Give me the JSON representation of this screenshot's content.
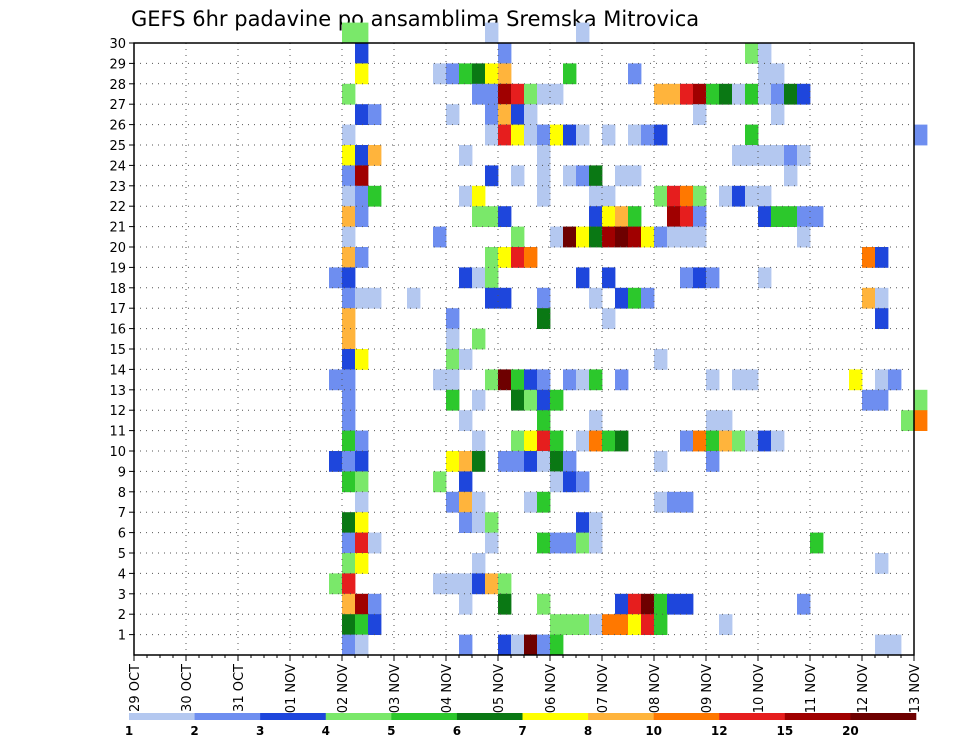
{
  "chart_data": {
    "type": "heatmap",
    "title": "GEFS 6hr padavine po ansamblima Sremska Mitrovica",
    "xlabel": "",
    "ylabel": "",
    "x_ticks": [
      "29 OCT",
      "30 OCT",
      "31 OCT",
      "01 NOV",
      "02 NOV",
      "03 NOV",
      "04 NOV",
      "05 NOV",
      "06 NOV",
      "07 NOV",
      "08 NOV",
      "09 NOV",
      "10 NOV",
      "11 NOV",
      "12 NOV",
      "13 NOV"
    ],
    "y_ticks": [
      1,
      2,
      3,
      4,
      5,
      6,
      7,
      8,
      9,
      10,
      11,
      12,
      13,
      14,
      15,
      16,
      17,
      18,
      19,
      20,
      21,
      22,
      23,
      24,
      25,
      26,
      27,
      28,
      29,
      30
    ],
    "x_unit": "6-hour step from 29 OCT 00Z",
    "x_range": [
      0,
      60
    ],
    "y_range": [
      0,
      30
    ],
    "grid": true,
    "levels": [
      "1",
      "2",
      "3",
      "4",
      "5",
      "6",
      "7",
      "8",
      "10",
      "12",
      "15",
      "20"
    ],
    "colors": [
      "#b4c8f0",
      "#6e8ef0",
      "#1e46dc",
      "#7ae86a",
      "#2cc82c",
      "#0a7814",
      "#ffff00",
      "#ffb43c",
      "#ff7800",
      "#e61e1e",
      "#a00000",
      "#6e0000"
    ],
    "cells": [
      [
        16,
        30,
        3
      ],
      [
        17,
        30,
        3
      ],
      [
        27,
        30,
        0
      ],
      [
        34,
        30,
        0
      ],
      [
        17,
        29,
        2
      ],
      [
        28,
        29,
        1
      ],
      [
        47,
        29,
        3
      ],
      [
        48,
        29,
        0
      ],
      [
        17,
        28,
        6
      ],
      [
        23,
        28,
        0
      ],
      [
        24,
        28,
        1
      ],
      [
        25,
        28,
        4
      ],
      [
        26,
        28,
        5
      ],
      [
        27,
        28,
        6
      ],
      [
        28,
        28,
        7
      ],
      [
        33,
        28,
        4
      ],
      [
        38,
        28,
        1
      ],
      [
        48,
        28,
        0
      ],
      [
        49,
        28,
        0
      ],
      [
        16,
        27,
        3
      ],
      [
        26,
        27,
        1
      ],
      [
        27,
        27,
        1
      ],
      [
        28,
        27,
        10
      ],
      [
        29,
        27,
        9
      ],
      [
        30,
        27,
        3
      ],
      [
        31,
        27,
        0
      ],
      [
        32,
        27,
        0
      ],
      [
        40,
        27,
        7
      ],
      [
        41,
        27,
        7
      ],
      [
        42,
        27,
        9
      ],
      [
        43,
        27,
        10
      ],
      [
        44,
        27,
        4
      ],
      [
        45,
        27,
        5
      ],
      [
        46,
        27,
        0
      ],
      [
        47,
        27,
        4
      ],
      [
        48,
        27,
        0
      ],
      [
        49,
        27,
        1
      ],
      [
        50,
        27,
        5
      ],
      [
        51,
        27,
        2
      ],
      [
        17,
        26,
        2
      ],
      [
        18,
        26,
        1
      ],
      [
        24,
        26,
        0
      ],
      [
        27,
        26,
        1
      ],
      [
        28,
        26,
        7
      ],
      [
        29,
        26,
        2
      ],
      [
        30,
        26,
        0
      ],
      [
        43,
        26,
        0
      ],
      [
        49,
        26,
        0
      ],
      [
        16,
        25,
        0
      ],
      [
        27,
        25,
        0
      ],
      [
        28,
        25,
        9
      ],
      [
        29,
        25,
        6
      ],
      [
        30,
        25,
        0
      ],
      [
        31,
        25,
        1
      ],
      [
        32,
        25,
        6
      ],
      [
        33,
        25,
        2
      ],
      [
        34,
        25,
        0
      ],
      [
        36,
        25,
        0
      ],
      [
        38,
        25,
        0
      ],
      [
        39,
        25,
        1
      ],
      [
        40,
        25,
        2
      ],
      [
        47,
        25,
        4
      ],
      [
        60,
        25,
        1
      ],
      [
        16,
        24,
        6
      ],
      [
        17,
        24,
        2
      ],
      [
        18,
        24,
        7
      ],
      [
        25,
        24,
        0
      ],
      [
        31,
        24,
        0
      ],
      [
        46,
        24,
        0
      ],
      [
        47,
        24,
        0
      ],
      [
        48,
        24,
        0
      ],
      [
        49,
        24,
        0
      ],
      [
        50,
        24,
        1
      ],
      [
        51,
        24,
        0
      ],
      [
        16,
        23,
        1
      ],
      [
        17,
        23,
        10
      ],
      [
        27,
        23,
        2
      ],
      [
        29,
        23,
        0
      ],
      [
        31,
        23,
        0
      ],
      [
        33,
        23,
        0
      ],
      [
        34,
        23,
        1
      ],
      [
        35,
        23,
        5
      ],
      [
        37,
        23,
        0
      ],
      [
        38,
        23,
        0
      ],
      [
        50,
        23,
        0
      ],
      [
        16,
        22,
        0
      ],
      [
        17,
        22,
        1
      ],
      [
        18,
        22,
        4
      ],
      [
        25,
        22,
        0
      ],
      [
        26,
        22,
        6
      ],
      [
        31,
        22,
        0
      ],
      [
        35,
        22,
        0
      ],
      [
        36,
        22,
        0
      ],
      [
        40,
        22,
        3
      ],
      [
        41,
        22,
        9
      ],
      [
        42,
        22,
        8
      ],
      [
        43,
        22,
        3
      ],
      [
        45,
        22,
        0
      ],
      [
        46,
        22,
        2
      ],
      [
        47,
        22,
        0
      ],
      [
        48,
        22,
        0
      ],
      [
        16,
        21,
        7
      ],
      [
        17,
        21,
        1
      ],
      [
        26,
        21,
        3
      ],
      [
        27,
        21,
        3
      ],
      [
        28,
        21,
        2
      ],
      [
        35,
        21,
        2
      ],
      [
        36,
        21,
        6
      ],
      [
        37,
        21,
        7
      ],
      [
        38,
        21,
        4
      ],
      [
        41,
        21,
        10
      ],
      [
        42,
        21,
        9
      ],
      [
        43,
        21,
        1
      ],
      [
        48,
        21,
        2
      ],
      [
        49,
        21,
        4
      ],
      [
        50,
        21,
        4
      ],
      [
        51,
        21,
        1
      ],
      [
        52,
        21,
        1
      ],
      [
        16,
        20,
        0
      ],
      [
        23,
        20,
        1
      ],
      [
        29,
        20,
        3
      ],
      [
        32,
        20,
        0
      ],
      [
        33,
        20,
        11
      ],
      [
        34,
        20,
        6
      ],
      [
        35,
        20,
        5
      ],
      [
        36,
        20,
        10
      ],
      [
        37,
        20,
        11
      ],
      [
        38,
        20,
        10
      ],
      [
        39,
        20,
        6
      ],
      [
        40,
        20,
        1
      ],
      [
        41,
        20,
        0
      ],
      [
        42,
        20,
        0
      ],
      [
        43,
        20,
        0
      ],
      [
        51,
        20,
        0
      ],
      [
        16,
        19,
        7
      ],
      [
        17,
        19,
        1
      ],
      [
        27,
        19,
        3
      ],
      [
        28,
        19,
        6
      ],
      [
        29,
        19,
        9
      ],
      [
        30,
        19,
        8
      ],
      [
        56,
        19,
        8
      ],
      [
        57,
        19,
        2
      ],
      [
        15,
        18,
        1
      ],
      [
        16,
        18,
        2
      ],
      [
        25,
        18,
        2
      ],
      [
        26,
        18,
        0
      ],
      [
        27,
        18,
        3
      ],
      [
        34,
        18,
        2
      ],
      [
        36,
        18,
        2
      ],
      [
        42,
        18,
        1
      ],
      [
        43,
        18,
        2
      ],
      [
        44,
        18,
        1
      ],
      [
        48,
        18,
        0
      ],
      [
        16,
        17,
        1
      ],
      [
        17,
        17,
        0
      ],
      [
        18,
        17,
        0
      ],
      [
        21,
        17,
        0
      ],
      [
        27,
        17,
        2
      ],
      [
        28,
        17,
        2
      ],
      [
        31,
        17,
        1
      ],
      [
        35,
        17,
        0
      ],
      [
        37,
        17,
        2
      ],
      [
        38,
        17,
        4
      ],
      [
        39,
        17,
        1
      ],
      [
        56,
        17,
        7
      ],
      [
        57,
        17,
        0
      ],
      [
        16,
        16,
        7
      ],
      [
        24,
        16,
        1
      ],
      [
        31,
        16,
        5
      ],
      [
        36,
        16,
        0
      ],
      [
        57,
        16,
        2
      ],
      [
        16,
        15,
        7
      ],
      [
        24,
        15,
        0
      ],
      [
        26,
        15,
        3
      ],
      [
        16,
        14,
        2
      ],
      [
        17,
        14,
        6
      ],
      [
        24,
        14,
        3
      ],
      [
        25,
        14,
        0
      ],
      [
        40,
        14,
        0
      ],
      [
        15,
        13,
        1
      ],
      [
        16,
        13,
        1
      ],
      [
        23,
        13,
        0
      ],
      [
        24,
        13,
        0
      ],
      [
        27,
        13,
        3
      ],
      [
        28,
        13,
        11
      ],
      [
        29,
        13,
        4
      ],
      [
        30,
        13,
        2
      ],
      [
        31,
        13,
        1
      ],
      [
        33,
        13,
        1
      ],
      [
        34,
        13,
        0
      ],
      [
        35,
        13,
        4
      ],
      [
        37,
        13,
        1
      ],
      [
        44,
        13,
        0
      ],
      [
        46,
        13,
        0
      ],
      [
        47,
        13,
        0
      ],
      [
        55,
        13,
        6
      ],
      [
        57,
        13,
        0
      ],
      [
        58,
        13,
        1
      ],
      [
        16,
        12,
        1
      ],
      [
        24,
        12,
        4
      ],
      [
        26,
        12,
        0
      ],
      [
        29,
        12,
        5
      ],
      [
        30,
        12,
        3
      ],
      [
        31,
        12,
        2
      ],
      [
        32,
        12,
        4
      ],
      [
        56,
        12,
        1
      ],
      [
        57,
        12,
        1
      ],
      [
        60,
        12,
        3
      ],
      [
        16,
        11,
        1
      ],
      [
        25,
        11,
        0
      ],
      [
        31,
        11,
        4
      ],
      [
        35,
        11,
        0
      ],
      [
        44,
        11,
        0
      ],
      [
        45,
        11,
        0
      ],
      [
        59,
        11,
        3
      ],
      [
        60,
        11,
        8
      ],
      [
        16,
        10,
        4
      ],
      [
        17,
        10,
        1
      ],
      [
        26,
        10,
        0
      ],
      [
        29,
        10,
        3
      ],
      [
        30,
        10,
        6
      ],
      [
        31,
        10,
        9
      ],
      [
        32,
        10,
        4
      ],
      [
        34,
        10,
        0
      ],
      [
        35,
        10,
        8
      ],
      [
        36,
        10,
        4
      ],
      [
        37,
        10,
        5
      ],
      [
        42,
        10,
        1
      ],
      [
        43,
        10,
        8
      ],
      [
        44,
        10,
        4
      ],
      [
        45,
        10,
        7
      ],
      [
        46,
        10,
        3
      ],
      [
        47,
        10,
        0
      ],
      [
        48,
        10,
        2
      ],
      [
        49,
        10,
        0
      ],
      [
        15,
        9,
        2
      ],
      [
        16,
        9,
        1
      ],
      [
        17,
        9,
        2
      ],
      [
        24,
        9,
        6
      ],
      [
        25,
        9,
        7
      ],
      [
        26,
        9,
        5
      ],
      [
        28,
        9,
        1
      ],
      [
        29,
        9,
        1
      ],
      [
        30,
        9,
        2
      ],
      [
        31,
        9,
        0
      ],
      [
        32,
        9,
        5
      ],
      [
        33,
        9,
        1
      ],
      [
        40,
        9,
        0
      ],
      [
        44,
        9,
        1
      ],
      [
        16,
        8,
        4
      ],
      [
        17,
        8,
        3
      ],
      [
        23,
        8,
        3
      ],
      [
        25,
        8,
        2
      ],
      [
        32,
        8,
        0
      ],
      [
        33,
        8,
        2
      ],
      [
        34,
        8,
        1
      ],
      [
        17,
        7,
        0
      ],
      [
        24,
        7,
        1
      ],
      [
        25,
        7,
        7
      ],
      [
        26,
        7,
        0
      ],
      [
        30,
        7,
        0
      ],
      [
        31,
        7,
        4
      ],
      [
        40,
        7,
        0
      ],
      [
        41,
        7,
        1
      ],
      [
        42,
        7,
        1
      ],
      [
        16,
        6,
        5
      ],
      [
        17,
        6,
        6
      ],
      [
        25,
        6,
        1
      ],
      [
        26,
        6,
        0
      ],
      [
        27,
        6,
        3
      ],
      [
        34,
        6,
        2
      ],
      [
        35,
        6,
        0
      ],
      [
        16,
        5,
        1
      ],
      [
        17,
        5,
        9
      ],
      [
        18,
        5,
        0
      ],
      [
        27,
        5,
        0
      ],
      [
        31,
        5,
        4
      ],
      [
        32,
        5,
        1
      ],
      [
        33,
        5,
        1
      ],
      [
        34,
        5,
        3
      ],
      [
        35,
        5,
        0
      ],
      [
        52,
        5,
        4
      ],
      [
        16,
        4,
        3
      ],
      [
        17,
        4,
        6
      ],
      [
        26,
        4,
        0
      ],
      [
        57,
        4,
        0
      ],
      [
        15,
        3,
        3
      ],
      [
        16,
        3,
        9
      ],
      [
        23,
        3,
        0
      ],
      [
        24,
        3,
        0
      ],
      [
        25,
        3,
        0
      ],
      [
        26,
        3,
        2
      ],
      [
        27,
        3,
        7
      ],
      [
        28,
        3,
        3
      ],
      [
        16,
        2,
        7
      ],
      [
        17,
        2,
        10
      ],
      [
        18,
        2,
        1
      ],
      [
        25,
        2,
        0
      ],
      [
        28,
        2,
        5
      ],
      [
        31,
        2,
        3
      ],
      [
        37,
        2,
        2
      ],
      [
        38,
        2,
        9
      ],
      [
        39,
        2,
        11
      ],
      [
        40,
        2,
        4
      ],
      [
        41,
        2,
        2
      ],
      [
        42,
        2,
        2
      ],
      [
        51,
        2,
        1
      ],
      [
        16,
        1,
        5
      ],
      [
        17,
        1,
        4
      ],
      [
        18,
        1,
        2
      ],
      [
        32,
        1,
        3
      ],
      [
        33,
        1,
        3
      ],
      [
        34,
        1,
        3
      ],
      [
        35,
        1,
        0
      ],
      [
        36,
        1,
        8
      ],
      [
        37,
        1,
        8
      ],
      [
        38,
        1,
        6
      ],
      [
        39,
        1,
        9
      ],
      [
        40,
        1,
        4
      ],
      [
        45,
        1,
        0
      ],
      [
        16,
        0,
        1
      ],
      [
        17,
        0,
        0
      ],
      [
        25,
        0,
        1
      ],
      [
        28,
        0,
        2
      ],
      [
        29,
        0,
        0
      ],
      [
        30,
        0,
        11
      ],
      [
        31,
        0,
        1
      ],
      [
        32,
        0,
        4
      ],
      [
        57,
        0,
        0
      ],
      [
        58,
        0,
        0
      ]
    ]
  }
}
